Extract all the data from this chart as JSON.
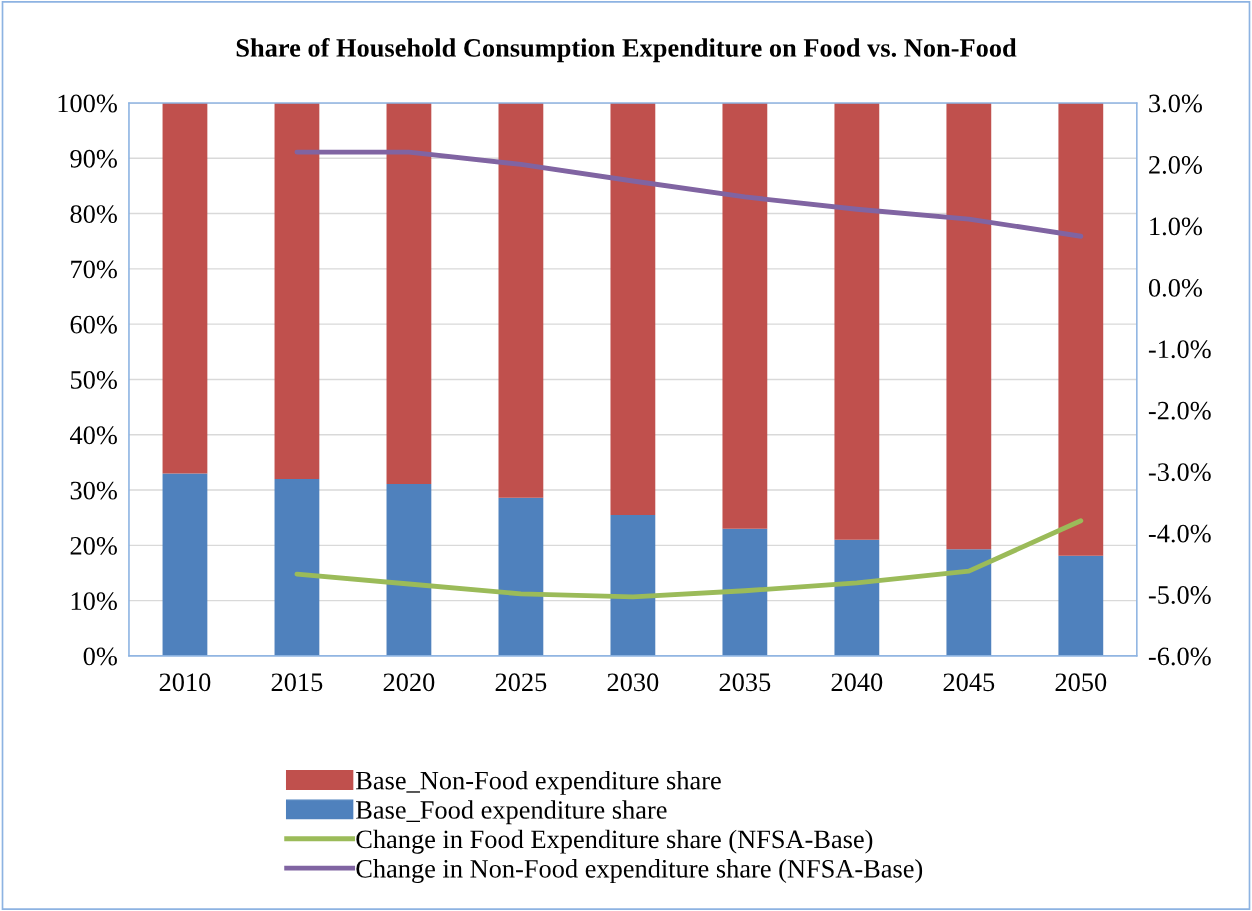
{
  "chart_data": {
    "type": "bar",
    "title": "Share of Household Consumption Expenditure on Food vs. Non-Food",
    "categories": [
      "2010",
      "2015",
      "2020",
      "2025",
      "2030",
      "2035",
      "2040",
      "2045",
      "2050"
    ],
    "stacked": true,
    "series": [
      {
        "name": "Base_Food expenditure share",
        "color": "#4f81bd",
        "values": [
          33.0,
          32.0,
          31.1,
          28.6,
          25.5,
          23.0,
          21.0,
          19.3,
          18.1
        ]
      },
      {
        "name": "Base_Non-Food expenditure share",
        "color": "#c0504d",
        "values": [
          67.0,
          68.0,
          68.9,
          71.4,
          74.5,
          77.0,
          79.0,
          80.7,
          81.9
        ]
      },
      {
        "name": "Change in Food Expenditure share (NFSA-Base)",
        "type": "line",
        "axis": "y2",
        "color": "#9bbb59",
        "values": [
          null,
          -4.67,
          -4.83,
          -4.99,
          -5.04,
          -4.94,
          -4.81,
          -4.62,
          -3.8
        ]
      },
      {
        "name": "Change in Non-Food expenditure share (NFSA-Base)",
        "type": "line",
        "axis": "y2",
        "color": "#8064a2",
        "values": [
          null,
          2.2,
          2.2,
          2.0,
          1.73,
          1.47,
          1.27,
          1.11,
          0.83
        ]
      }
    ],
    "ylim": [
      0,
      100
    ],
    "yticks": [
      {
        "value": 0,
        "label": "0%"
      },
      {
        "value": 10,
        "label": "10%"
      },
      {
        "value": 20,
        "label": "20%"
      },
      {
        "value": 30,
        "label": "30%"
      },
      {
        "value": 40,
        "label": "40%"
      },
      {
        "value": 50,
        "label": "50%"
      },
      {
        "value": 60,
        "label": "60%"
      },
      {
        "value": 70,
        "label": "70%"
      },
      {
        "value": 80,
        "label": "80%"
      },
      {
        "value": 90,
        "label": "90%"
      },
      {
        "value": 100,
        "label": "100%"
      }
    ],
    "y2lim": [
      -6,
      3
    ],
    "y2ticks": [
      {
        "value": 3,
        "label": "3.0%"
      },
      {
        "value": 2,
        "label": "2.0%"
      },
      {
        "value": 1,
        "label": "1.0%"
      },
      {
        "value": 0,
        "label": "0.0%"
      },
      {
        "value": -1,
        "label": "-1.0%"
      },
      {
        "value": -2,
        "label": "-2.0%"
      },
      {
        "value": -3,
        "label": "-3.0%"
      },
      {
        "value": -4,
        "label": "-4.0%"
      },
      {
        "value": -5,
        "label": "-5.0%"
      },
      {
        "value": -6,
        "label": "-6.0%"
      }
    ],
    "grid": "y",
    "legend": "bottom",
    "marker": "none",
    "line_style": "solid"
  }
}
